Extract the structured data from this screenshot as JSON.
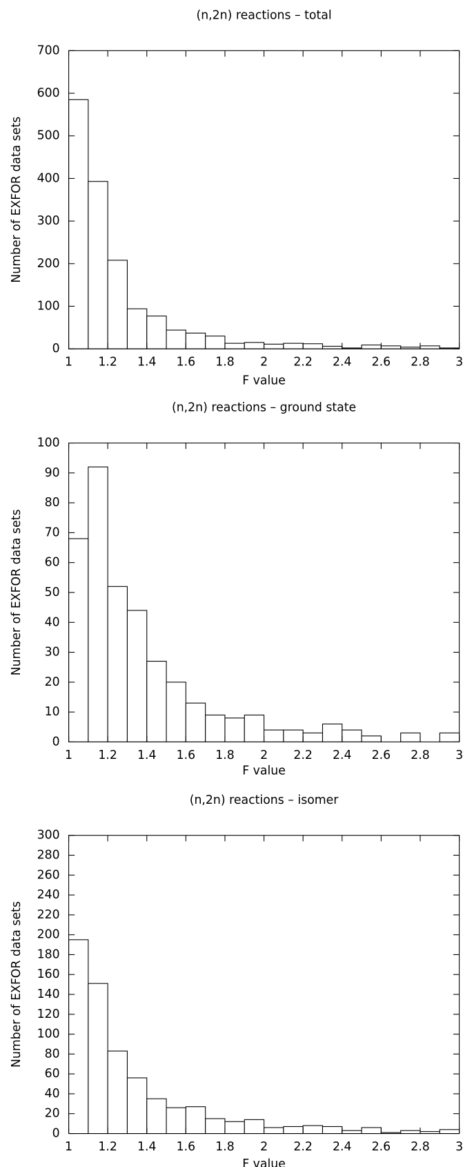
{
  "chart_data": [
    {
      "type": "histogram",
      "title": "(n,2n) reactions – total",
      "xlabel": "F value",
      "ylabel": "Number of EXFOR data sets",
      "bins": [
        1,
        1.1,
        1.2,
        1.3,
        1.4,
        1.5,
        1.6,
        1.7,
        1.8,
        1.9,
        2,
        2.1,
        2.2,
        2.3,
        2.4,
        2.5,
        2.6,
        2.7,
        2.8,
        2.9,
        3
      ],
      "values": [
        585,
        393,
        208,
        94,
        77,
        44,
        37,
        30,
        13,
        15,
        11,
        13,
        12,
        6,
        2,
        9,
        7,
        4,
        7,
        2
      ],
      "color": "#ffffff",
      "xlim": [
        1,
        3
      ],
      "ylim": [
        0,
        700
      ],
      "xticks": [
        1,
        1.2,
        1.4,
        1.6,
        1.8,
        2,
        2.2,
        2.4,
        2.6,
        2.8,
        3
      ],
      "yticks": [
        0,
        100,
        200,
        300,
        400,
        500,
        600,
        700
      ]
    },
    {
      "type": "histogram",
      "title": "(n,2n) reactions – ground state",
      "xlabel": "F value",
      "ylabel": "Number of EXFOR data sets",
      "bins": [
        1,
        1.1,
        1.2,
        1.3,
        1.4,
        1.5,
        1.6,
        1.7,
        1.8,
        1.9,
        2,
        2.1,
        2.2,
        2.3,
        2.4,
        2.5,
        2.6,
        2.7,
        2.8,
        2.9,
        3
      ],
      "values": [
        68,
        92,
        52,
        44,
        27,
        20,
        13,
        9,
        8,
        9,
        4,
        4,
        3,
        6,
        4,
        2,
        0,
        3,
        0,
        3
      ],
      "color": "#ffffff",
      "xlim": [
        1,
        3
      ],
      "ylim": [
        0,
        100
      ],
      "xticks": [
        1,
        1.2,
        1.4,
        1.6,
        1.8,
        2,
        2.2,
        2.4,
        2.6,
        2.8,
        3
      ],
      "yticks": [
        0,
        10,
        20,
        30,
        40,
        50,
        60,
        70,
        80,
        90,
        100
      ]
    },
    {
      "type": "histogram",
      "title": "(n,2n) reactions – isomer",
      "xlabel": "F value",
      "ylabel": "Number of EXFOR data sets",
      "bins": [
        1,
        1.1,
        1.2,
        1.3,
        1.4,
        1.5,
        1.6,
        1.7,
        1.8,
        1.9,
        2,
        2.1,
        2.2,
        2.3,
        2.4,
        2.5,
        2.6,
        2.7,
        2.8,
        2.9,
        3
      ],
      "values": [
        195,
        151,
        83,
        56,
        35,
        26,
        27,
        15,
        12,
        14,
        6,
        7,
        8,
        7,
        3,
        6,
        1,
        3,
        2,
        4
      ],
      "color": "#ffffff",
      "xlim": [
        1,
        3
      ],
      "ylim": [
        0,
        300
      ],
      "xticks": [
        1,
        1.2,
        1.4,
        1.6,
        1.8,
        2,
        2.2,
        2.4,
        2.6,
        2.8,
        3
      ],
      "yticks": [
        0,
        20,
        40,
        60,
        80,
        100,
        120,
        140,
        160,
        180,
        200,
        220,
        240,
        260,
        280,
        300
      ]
    }
  ]
}
